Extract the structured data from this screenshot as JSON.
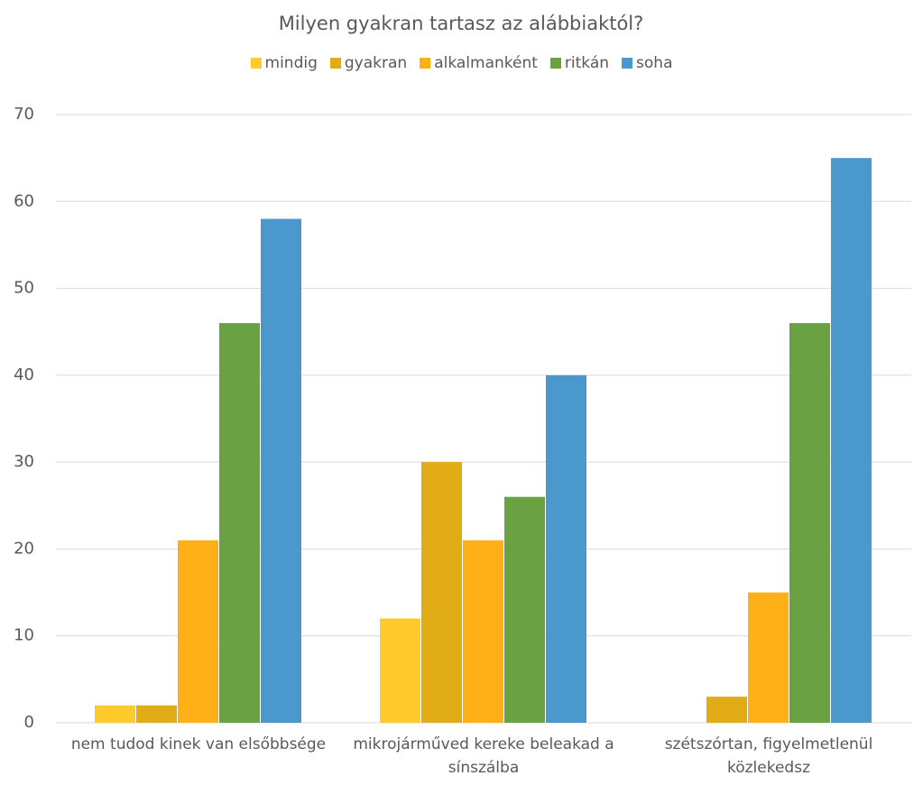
{
  "chart_data": {
    "type": "bar",
    "title": "Milyen gyakran tartasz az alábbiaktól?",
    "categories": [
      "nem tudod kinek van elsőbbsége",
      "mikrojárműved kereke beleakad a sínszálba",
      "szétszórtan, figyelmetlenül közlekedsz"
    ],
    "series": [
      {
        "name": "mindig",
        "color": "#FFCA2C",
        "values": [
          2,
          12,
          0
        ]
      },
      {
        "name": "gyakran",
        "color": "#E2AC16",
        "values": [
          2,
          30,
          3
        ]
      },
      {
        "name": "alkalmanként",
        "color": "#FFB016",
        "values": [
          21,
          21,
          15
        ]
      },
      {
        "name": "ritkán",
        "color": "#6AA142",
        "values": [
          46,
          26,
          46
        ]
      },
      {
        "name": "soha",
        "color": "#4A98CC",
        "values": [
          58,
          40,
          65
        ]
      }
    ],
    "ylim": [
      0,
      70
    ],
    "yticks": [
      0,
      10,
      20,
      30,
      40,
      50,
      60,
      70
    ],
    "grid": true,
    "legend": "top"
  }
}
